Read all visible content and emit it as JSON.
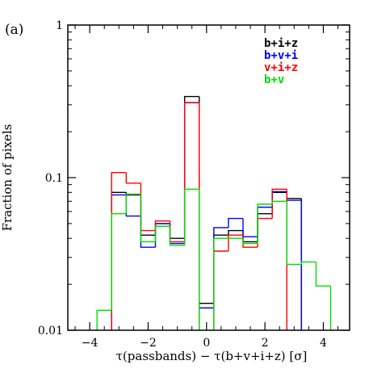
{
  "chart_data": {
    "type": "histogram",
    "panel_label": "(a)",
    "xlabel": "τ(passbands) − τ(b+v+i+z) [σ]",
    "ylabel": "Fraction of pixels",
    "xlim": [
      -4.75,
      4.9
    ],
    "ylim": [
      0.01,
      1
    ],
    "yscale": "log",
    "x_ticks": [
      -4,
      -2,
      0,
      2,
      4
    ],
    "x_tick_labels": [
      "−4",
      "−2",
      "0",
      "2",
      "4"
    ],
    "y_ticks": [
      0.01,
      0.1,
      1
    ],
    "y_tick_labels": [
      "0.01",
      "0.1",
      "1"
    ],
    "bin_edges": [
      -4.25,
      -3.75,
      -3.25,
      -2.75,
      -2.25,
      -1.75,
      -1.25,
      -0.75,
      -0.25,
      0.25,
      0.75,
      1.25,
      1.75,
      2.25,
      2.75,
      3.25,
      3.75,
      4.25,
      4.75
    ],
    "legend_position": "top-right",
    "series": [
      {
        "name": "b+i+z",
        "color": "#000000",
        "values": [
          0,
          0,
          0.08,
          0.077,
          0.042,
          0.05,
          0.04,
          0.34,
          0.015,
          0.042,
          0.045,
          0.038,
          0.058,
          0.08,
          0.073,
          0,
          0,
          0
        ]
      },
      {
        "name": "b+v+i",
        "color": "#0000ff",
        "values": [
          0,
          0,
          0.077,
          0.056,
          0.035,
          0.05,
          0.037,
          0.31,
          0.014,
          0.047,
          0.054,
          0.041,
          0.064,
          0.081,
          0.071,
          0,
          0,
          0
        ]
      },
      {
        "name": "v+i+z",
        "color": "#ff0000",
        "values": [
          0,
          0,
          0.108,
          0.092,
          0.045,
          0.052,
          0.038,
          0.31,
          0,
          0.033,
          0.042,
          0.035,
          0.054,
          0.084,
          0,
          0,
          0,
          0
        ]
      },
      {
        "name": "b+v",
        "color": "#00dd00",
        "values": [
          0,
          0.0135,
          0.058,
          0.078,
          0.038,
          0.048,
          0.036,
          0.084,
          0,
          0.04,
          0.04,
          0.037,
          0.067,
          0.07,
          0.027,
          0.028,
          0.0195,
          0
        ]
      }
    ]
  }
}
